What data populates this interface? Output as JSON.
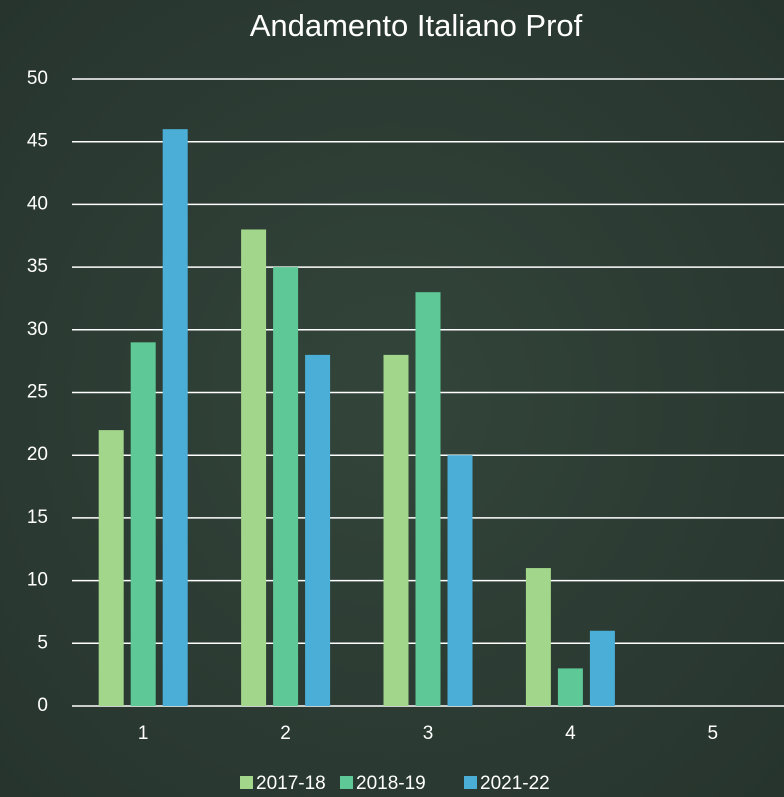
{
  "chart_data": {
    "type": "bar",
    "title": "Andamento Italiano Prof",
    "categories": [
      "1",
      "2",
      "3",
      "4",
      "5"
    ],
    "series": [
      {
        "name": "2017-18",
        "color": "#a1d68b",
        "values": [
          22,
          38,
          28,
          11,
          0
        ]
      },
      {
        "name": "2018-19",
        "color": "#5ec996",
        "values": [
          29,
          35,
          33,
          3,
          0
        ]
      },
      {
        "name": "2021-22",
        "color": "#4aaed6",
        "values": [
          46,
          28,
          20,
          6,
          0
        ]
      }
    ],
    "ylim": [
      0,
      50
    ],
    "yticks": [
      0,
      5,
      10,
      15,
      20,
      25,
      30,
      35,
      40,
      45,
      50
    ],
    "grid": true,
    "legend": "bottom"
  }
}
